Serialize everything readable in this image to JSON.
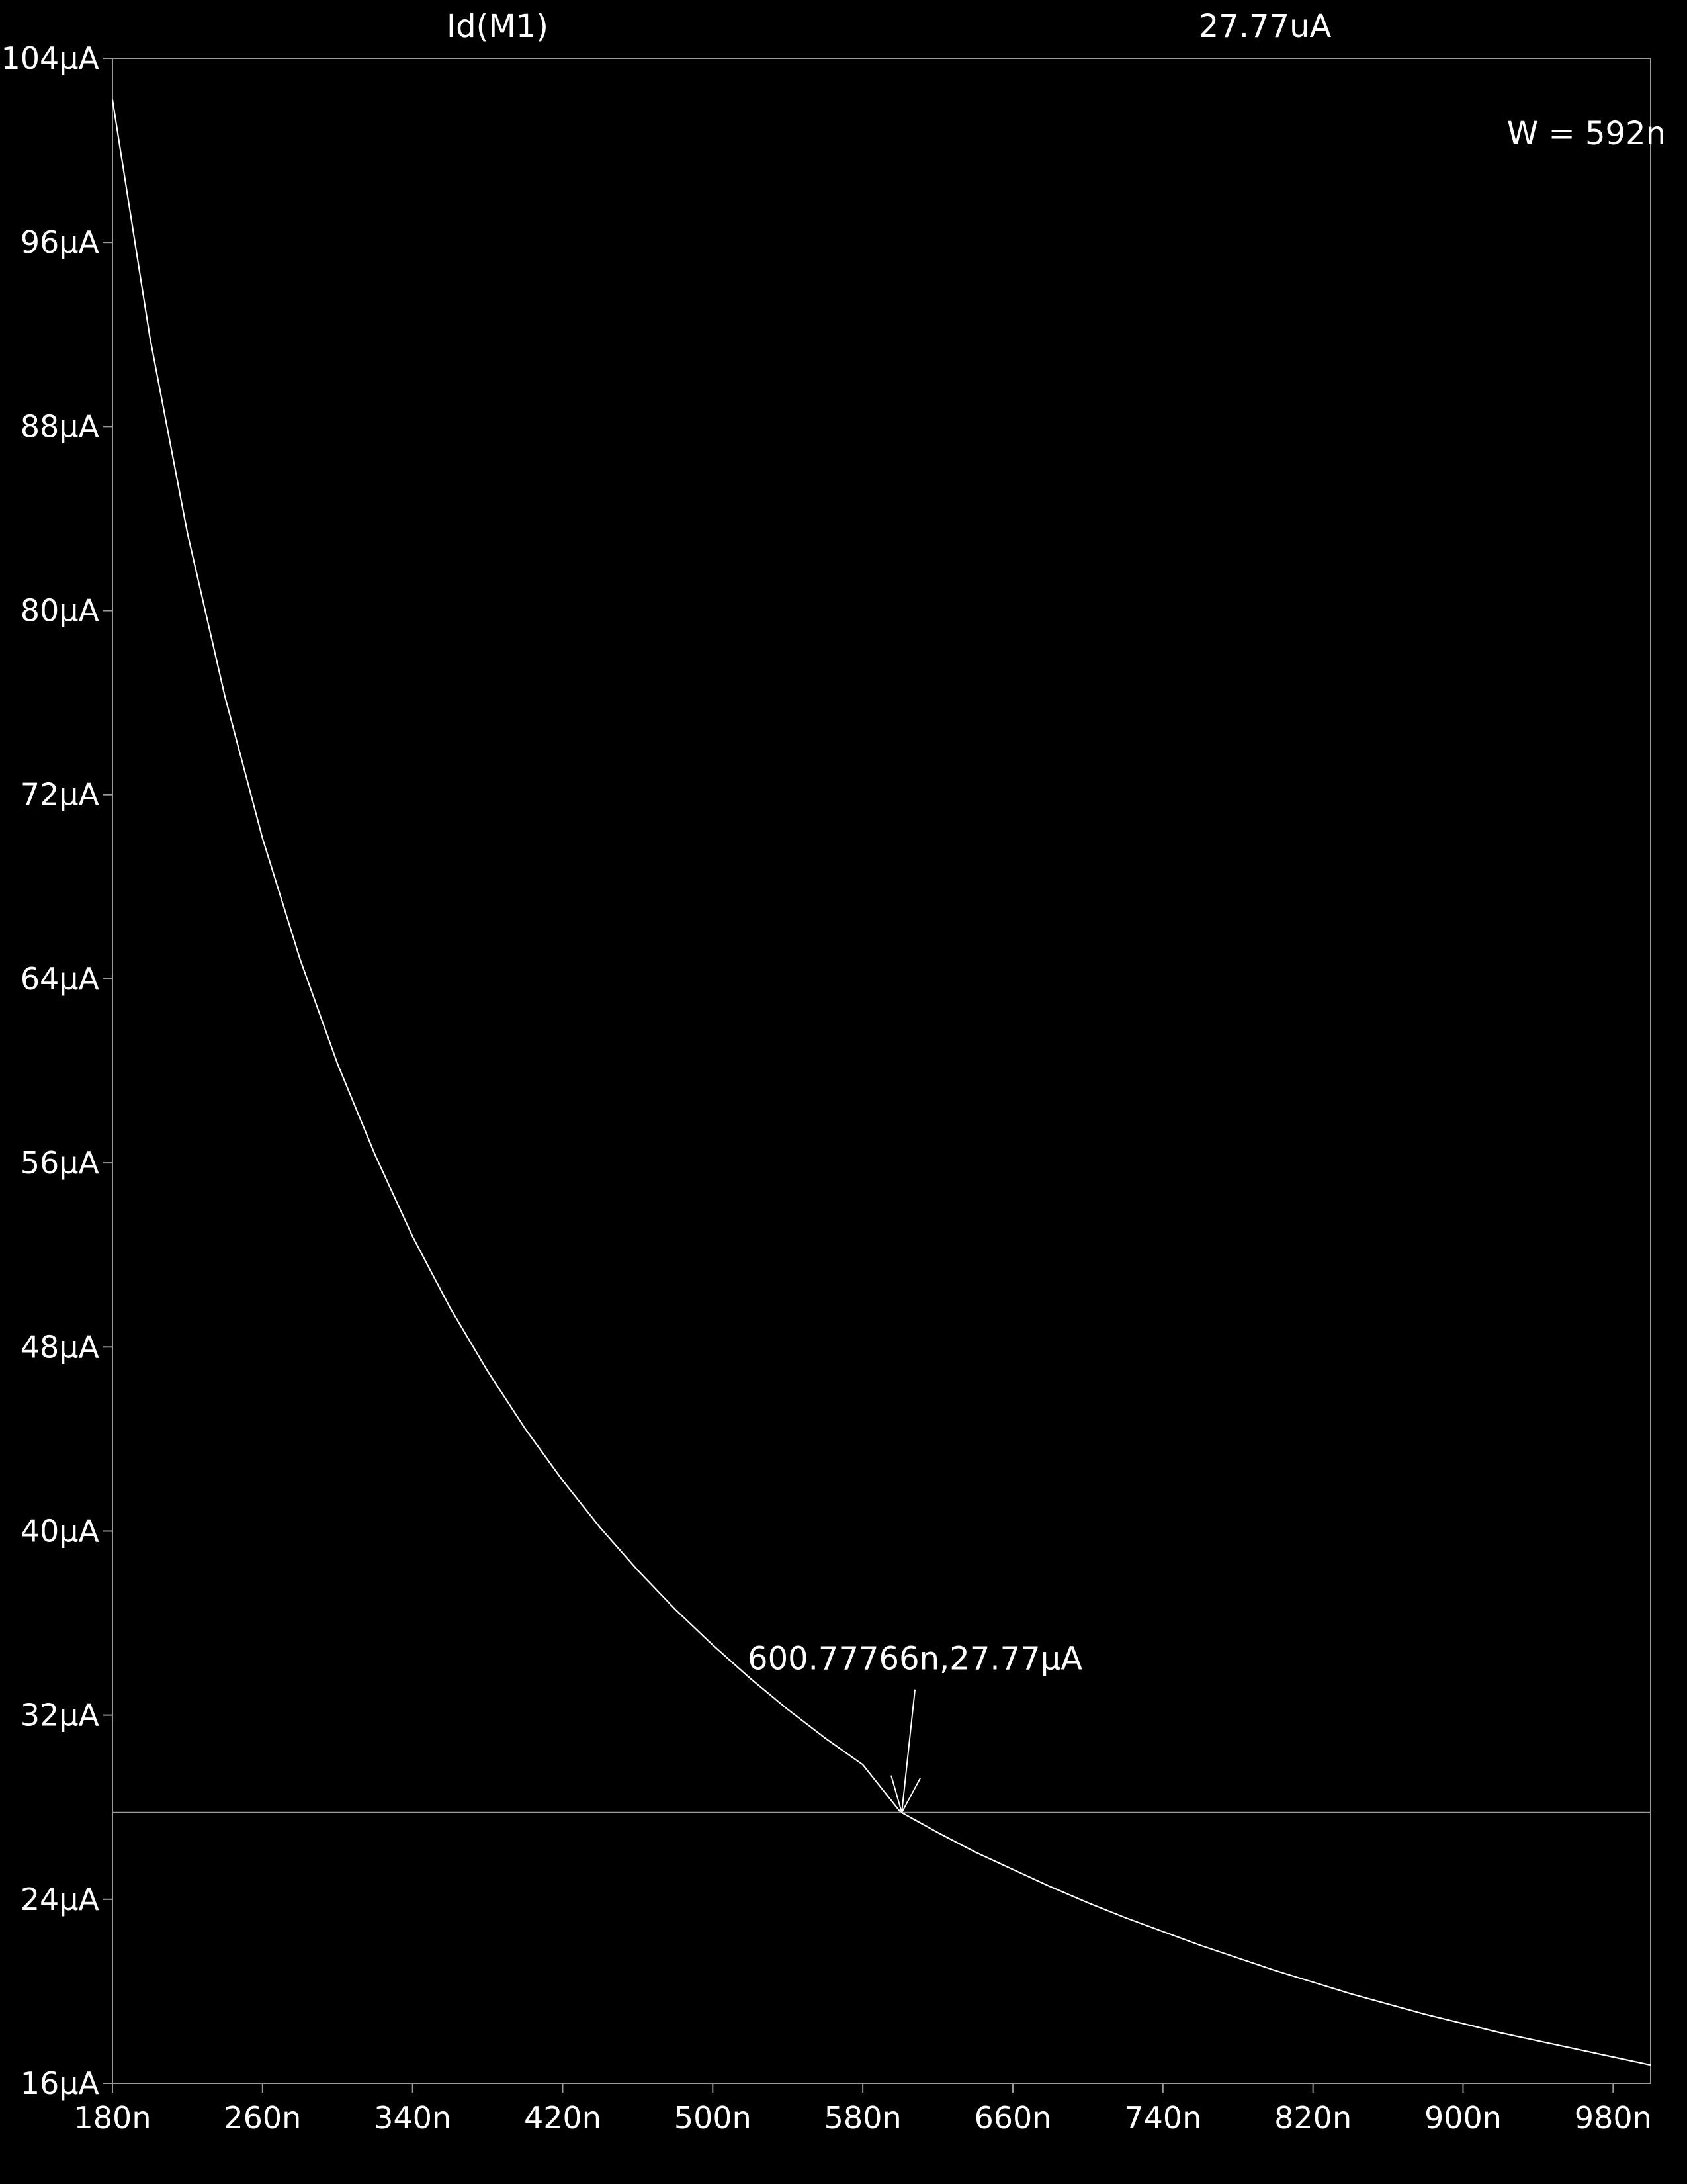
{
  "header": {
    "trace_name": "Id(M1)",
    "cursor_value": "27.77uA"
  },
  "chart_data": {
    "type": "line",
    "x_unit": "n",
    "y_unit": "µA",
    "xlim": [
      180,
      1000
    ],
    "ylim": [
      16,
      104
    ],
    "x_ticks": [
      180,
      260,
      340,
      420,
      500,
      580,
      660,
      740,
      820,
      900,
      980
    ],
    "x_tick_labels": [
      "180n",
      "260n",
      "340n",
      "420n",
      "500n",
      "580n",
      "660n",
      "740n",
      "820n",
      "900n",
      "980n"
    ],
    "y_ticks": [
      104,
      96,
      88,
      80,
      72,
      64,
      56,
      48,
      40,
      32,
      24,
      16
    ],
    "y_tick_labels": [
      "104µA",
      "96µA",
      "88µA",
      "80µA",
      "72µA",
      "64µA",
      "56µA",
      "48µA",
      "40µA",
      "32µA",
      "24µA",
      "16µA"
    ],
    "grid": false,
    "series": [
      {
        "x": [
          180,
          200,
          220,
          240,
          260,
          280,
          300,
          320,
          340,
          360,
          380,
          400,
          420,
          440,
          460,
          480,
          500,
          520,
          540,
          560,
          580,
          600,
          620,
          640,
          660,
          680,
          700,
          720,
          740,
          760,
          780,
          800,
          820,
          840,
          860,
          880,
          900,
          920,
          940,
          960,
          980,
          1000
        ],
        "y": [
          102.2,
          91.85,
          83.35,
          76.25,
          70.1,
          64.85,
          60.3,
          56.35,
          52.8,
          49.7,
          46.95,
          44.45,
          42.2,
          40.15,
          38.3,
          36.6,
          35.05,
          33.6,
          32.25,
          31.0,
          29.85,
          27.8,
          26.9,
          26.05,
          25.3,
          24.55,
          23.85,
          23.2,
          22.6,
          22.0,
          21.45,
          20.9,
          20.4,
          19.9,
          19.45,
          19.0,
          18.6,
          18.2,
          17.85,
          17.5,
          17.15,
          16.8
        ]
      }
    ],
    "cursor": {
      "y": 27.77,
      "point_x": 600.77766,
      "point_y": 27.77,
      "label": "600.77766n,27.77µA"
    },
    "annotation": "W = 592n",
    "colors": {
      "background": "#000000",
      "foreground": "#ffffff",
      "trace": "#ffffff",
      "axis": "#9a9a9a"
    }
  }
}
